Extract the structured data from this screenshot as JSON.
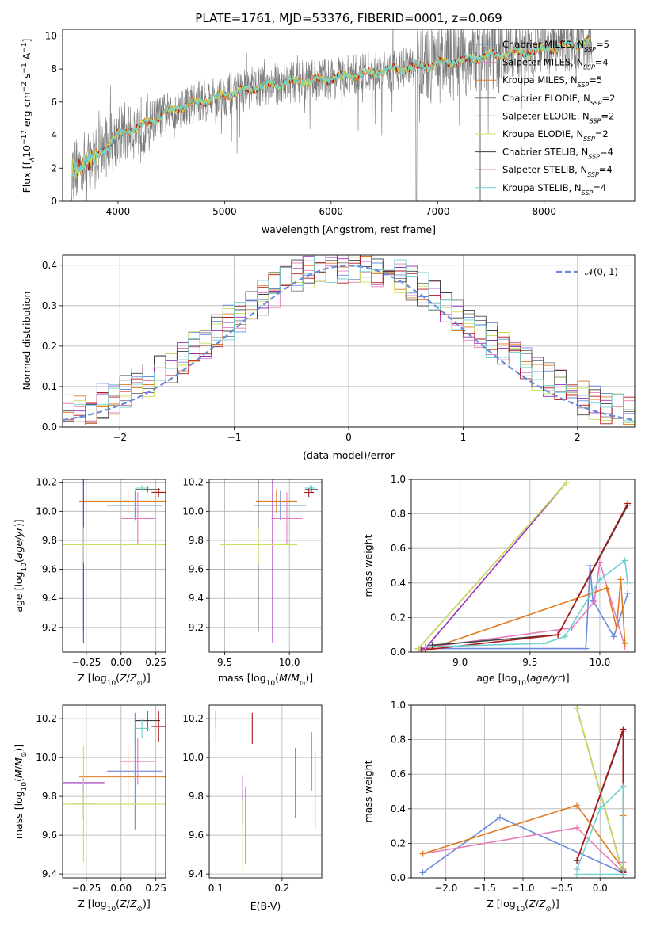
{
  "title": "PLATE=1761, MJD=53376, FIBERID=0001, z=0.069",
  "colors": {
    "chabrier_miles": "#6a8bdc",
    "salpeter_miles": "#e37ebb",
    "kroupa_miles": "#e07b20",
    "chabrier_elodie": "#7a7a7a",
    "salpeter_elodie": "#9b30b8",
    "kroupa_elodie": "#c8e05a",
    "chabrier_stelib": "#404040",
    "salpeter_stelib": "#b01717",
    "kroupa_stelib": "#70d0d0",
    "normal": "#6a8bdc",
    "grid": "#b0b0b0"
  },
  "chart_data": [
    {
      "type": "line",
      "name": "spectrum",
      "xlabel": "wavelength [Angstrom, rest frame]",
      "ylabel": "Flux [f_λ10^-17 erg cm^-2 s^-1 A^-1]",
      "ylabel_parts": [
        "Flux [f",
        "λ",
        "10",
        "−17",
        " erg cm",
        "−2",
        " s",
        "−1",
        " A",
        "−1",
        "]"
      ],
      "xlim": [
        3480,
        8850
      ],
      "ylim": [
        0,
        10.4
      ],
      "xticks": [
        "4000",
        "5000",
        "6000",
        "7000",
        "8000"
      ],
      "yticks": [
        "0",
        "2",
        "4",
        "6",
        "8",
        "10"
      ],
      "legend_position": "upper right",
      "legend": [
        {
          "key": "chabrier_miles",
          "text": "Chabrier MILES, N",
          "sub": "SSP",
          "tail": "=5"
        },
        {
          "key": "salpeter_miles",
          "text": "Salpeter MILES, N",
          "sub": "SSP",
          "tail": "=4"
        },
        {
          "key": "kroupa_miles",
          "text": "Kroupa MILES, N",
          "sub": "SSP",
          "tail": "=5"
        },
        {
          "key": "chabrier_elodie",
          "text": "Chabrier ELODIE, N",
          "sub": "SSP",
          "tail": "=2"
        },
        {
          "key": "salpeter_elodie",
          "text": "Salpeter ELODIE, N",
          "sub": "SSP",
          "tail": "=2"
        },
        {
          "key": "kroupa_elodie",
          "text": "Kroupa ELODIE, N",
          "sub": "SSP",
          "tail": "=2"
        },
        {
          "key": "chabrier_stelib",
          "text": "Chabrier STELIB, N",
          "sub": "SSP",
          "tail": "=4"
        },
        {
          "key": "salpeter_stelib",
          "text": "Salpeter STELIB, N",
          "sub": "SSP",
          "tail": "=4"
        },
        {
          "key": "kroupa_stelib",
          "text": "Kroupa STELIB, N",
          "sub": "SSP",
          "tail": "=4"
        }
      ],
      "continuum": {
        "x": [
          3560,
          3700,
          3800,
          3900,
          4000,
          4100,
          4200,
          4300,
          4500,
          4700,
          5000,
          5300,
          5600,
          6000,
          6300,
          6600,
          6900,
          7200,
          7500,
          7800,
          8100,
          8400,
          8450
        ],
        "y": [
          1.8,
          2.4,
          2.7,
          3.4,
          4.0,
          4.3,
          4.5,
          4.8,
          5.5,
          5.9,
          6.4,
          6.9,
          7.2,
          7.4,
          7.7,
          8.0,
          8.2,
          8.5,
          8.8,
          9.0,
          9.3,
          9.6,
          9.7
        ]
      }
    },
    {
      "type": "bar",
      "name": "residual_histogram",
      "xlabel": "(data-model)/error",
      "ylabel": "Normed distribution",
      "xlim": [
        -2.5,
        2.5
      ],
      "ylim": [
        0,
        0.425
      ],
      "xticks": [
        "−2",
        "−1",
        "0",
        "1",
        "2"
      ],
      "yticks": [
        "0.0",
        "0.1",
        "0.2",
        "0.3",
        "0.4"
      ],
      "legend_label": "𝒩(0, 1)",
      "legend_position": "upper right",
      "grid": true,
      "bin_width": 0.1
    },
    {
      "type": "scatter",
      "name": "age_vs_Z",
      "xlabel": "Z [log10(Z/Z⊙)]",
      "ylabel": "age [log10(age/yr)]",
      "xlim": [
        -0.42,
        0.32
      ],
      "ylim": [
        9.03,
        10.22
      ],
      "xticks": [
        "−0.25",
        "0.00",
        "0.25"
      ],
      "xtick_values": [
        -0.25,
        0,
        0.25
      ],
      "yticks": [
        "9.2",
        "9.4",
        "9.6",
        "9.8",
        "10.0",
        "10.2"
      ],
      "ytick_values": [
        9.2,
        9.4,
        9.6,
        9.8,
        10.0,
        10.2
      ],
      "grid": true,
      "points": [
        {
          "key": "chabrier_miles",
          "x": 0.1,
          "y": 10.04,
          "xerr": 0.2,
          "yerr": 0.1
        },
        {
          "key": "salpeter_miles",
          "x": 0.12,
          "y": 9.95,
          "xerr": 0.12,
          "yerr": 0.18
        },
        {
          "key": "kroupa_miles",
          "x": 0.05,
          "y": 10.07,
          "xerr": 0.35,
          "yerr": 0.08
        },
        {
          "key": "chabrier_elodie",
          "x": -0.27,
          "y": 9.77,
          "xerr": 0.1,
          "yerr": 0.6
        },
        {
          "key": "salpeter_elodie",
          "x": -0.27,
          "y": 9.77,
          "xerr": 0.15,
          "yerr": 0.68
        },
        {
          "key": "kroupa_elodie",
          "x": -0.27,
          "y": 9.77,
          "xerr": 0.16,
          "yerr": 0.12
        },
        {
          "key": "chabrier_stelib",
          "x": 0.19,
          "y": 10.15,
          "xerr": 0.09,
          "yerr": 0.02
        },
        {
          "key": "salpeter_stelib",
          "x": 0.27,
          "y": 10.13,
          "xerr": 0.05,
          "yerr": 0.03
        },
        {
          "key": "kroupa_stelib",
          "x": 0.15,
          "y": 10.16,
          "xerr": 0.05,
          "yerr": 0.02
        },
        {
          "key": "kroupa_elodie",
          "x": -0.27,
          "y": 9.77,
          "xerr": 0.6,
          "yerr": 0.0
        }
      ]
    },
    {
      "type": "scatter",
      "name": "age_vs_mass",
      "xlabel": "mass [log10(M/M⊙)]",
      "ylabel": "",
      "xlim": [
        9.38,
        10.25
      ],
      "ylim": [
        9.03,
        10.22
      ],
      "xticks": [
        "9.5",
        "10.0"
      ],
      "xtick_values": [
        9.5,
        10.0
      ],
      "yticks": [
        "9.2",
        "9.4",
        "9.6",
        "9.8",
        "10.0",
        "10.2"
      ],
      "ytick_values": [
        9.2,
        9.4,
        9.6,
        9.8,
        10.0,
        10.2
      ],
      "grid": true,
      "points": [
        {
          "key": "chabrier_miles",
          "x": 9.93,
          "y": 10.04,
          "xerr": 0.2,
          "yerr": 0.1
        },
        {
          "key": "salpeter_miles",
          "x": 9.98,
          "y": 9.95,
          "xerr": 0.12,
          "yerr": 0.18
        },
        {
          "key": "kroupa_miles",
          "x": 9.9,
          "y": 10.07,
          "xerr": 0.16,
          "yerr": 0.08
        },
        {
          "key": "chabrier_elodie",
          "x": 9.76,
          "y": 9.77,
          "xerr": 0.08,
          "yerr": 0.6
        },
        {
          "key": "salpeter_elodie",
          "x": 9.87,
          "y": 9.77,
          "xerr": 0.04,
          "yerr": 0.68
        },
        {
          "key": "kroupa_elodie",
          "x": 9.76,
          "y": 9.77,
          "xerr": 0.3,
          "yerr": 0.12
        },
        {
          "key": "chabrier_stelib",
          "x": 10.17,
          "y": 10.15,
          "xerr": 0.05,
          "yerr": 0.02
        },
        {
          "key": "salpeter_stelib",
          "x": 10.15,
          "y": 10.13,
          "xerr": 0.04,
          "yerr": 0.03
        },
        {
          "key": "kroupa_stelib",
          "x": 10.16,
          "y": 10.16,
          "xerr": 0.04,
          "yerr": 0.02
        }
      ]
    },
    {
      "type": "line",
      "name": "mass_weight_vs_age",
      "xlabel": "age [log10(age/yr)]",
      "ylabel": "mass weight",
      "xlim": [
        8.65,
        10.25
      ],
      "ylim": [
        0,
        1.0
      ],
      "xticks": [
        "9.0",
        "9.5",
        "10.0"
      ],
      "xtick_values": [
        9.0,
        9.5,
        10.0
      ],
      "yticks": [
        "0.0",
        "0.2",
        "0.4",
        "0.6",
        "0.8",
        "1.0"
      ],
      "ytick_values": [
        0,
        0.2,
        0.4,
        0.6,
        0.8,
        1.0
      ],
      "grid": true,
      "series": [
        {
          "key": "chabrier_miles",
          "x": [
            8.7,
            9.9,
            9.93,
            9.95,
            10.1,
            10.2
          ],
          "y": [
            0.02,
            0.02,
            0.5,
            0.3,
            0.09,
            0.34
          ]
        },
        {
          "key": "salpeter_miles",
          "x": [
            8.7,
            9.8,
            9.96,
            10.0,
            10.18
          ],
          "y": [
            0.02,
            0.14,
            0.29,
            0.52,
            0.03
          ]
        },
        {
          "key": "kroupa_miles",
          "x": [
            8.75,
            10.05,
            10.12,
            10.15,
            10.18
          ],
          "y": [
            0.01,
            0.37,
            0.14,
            0.42,
            0.05
          ]
        },
        {
          "key": "chabrier_elodie",
          "x": [
            8.7,
            9.76
          ],
          "y": [
            0.02,
            0.98
          ]
        },
        {
          "key": "salpeter_elodie",
          "x": [
            8.75,
            9.76
          ],
          "y": [
            0.02,
            0.98
          ]
        },
        {
          "key": "kroupa_elodie",
          "x": [
            8.7,
            9.76
          ],
          "y": [
            0.02,
            0.98
          ]
        },
        {
          "key": "chabrier_stelib",
          "x": [
            8.8,
            9.7,
            10.2
          ],
          "y": [
            0.04,
            0.1,
            0.85
          ]
        },
        {
          "key": "salpeter_stelib",
          "x": [
            8.72,
            9.7,
            10.2
          ],
          "y": [
            0.01,
            0.1,
            0.86
          ]
        },
        {
          "key": "kroupa_stelib",
          "x": [
            8.75,
            9.6,
            9.75,
            10.0,
            10.18,
            10.2
          ],
          "y": [
            0.03,
            0.05,
            0.09,
            0.42,
            0.53,
            0.4
          ]
        }
      ]
    },
    {
      "type": "scatter",
      "name": "mass_vs_Z",
      "xlabel": "Z [log10(Z/Z⊙)]",
      "ylabel": "mass [log10(M/M⊙)]",
      "xlim": [
        -0.42,
        0.32
      ],
      "ylim": [
        9.38,
        10.27
      ],
      "xticks": [
        "−0.25",
        "0.00",
        "0.25"
      ],
      "xtick_values": [
        -0.25,
        0,
        0.25
      ],
      "yticks": [
        "9.4",
        "9.6",
        "9.8",
        "10.0",
        "10.2"
      ],
      "ytick_values": [
        9.4,
        9.6,
        9.8,
        10.0,
        10.2
      ],
      "grid": true,
      "points": [
        {
          "key": "chabrier_miles",
          "x": 0.1,
          "y": 9.93,
          "xerr": 0.2,
          "yerr": 0.3
        },
        {
          "key": "salpeter_miles",
          "x": 0.12,
          "y": 9.98,
          "xerr": 0.12,
          "yerr": 0.12
        },
        {
          "key": "kroupa_miles",
          "x": 0.05,
          "y": 9.9,
          "xerr": 0.35,
          "yerr": 0.16
        },
        {
          "key": "chabrier_elodie",
          "x": -0.27,
          "y": 9.76,
          "xerr": 0.1,
          "yerr": 0.08
        },
        {
          "key": "salpeter_elodie",
          "x": -0.27,
          "y": 9.87,
          "xerr": 0.15,
          "yerr": 0.04
        },
        {
          "key": "kroupa_elodie",
          "x": -0.27,
          "y": 9.76,
          "xerr": 0.6,
          "yerr": 0.3
        },
        {
          "key": "chabrier_stelib",
          "x": 0.19,
          "y": 10.19,
          "xerr": 0.09,
          "yerr": 0.05
        },
        {
          "key": "salpeter_stelib",
          "x": 0.27,
          "y": 10.16,
          "xerr": 0.05,
          "yerr": 0.08
        },
        {
          "key": "kroupa_stelib",
          "x": 0.15,
          "y": 10.15,
          "xerr": 0.05,
          "yerr": 0.05
        }
      ]
    },
    {
      "type": "scatter",
      "name": "mass_vs_EBV",
      "xlabel": "E(B-V)",
      "ylabel": "",
      "xlim": [
        0.09,
        0.26
      ],
      "ylim": [
        9.38,
        10.27
      ],
      "xticks": [
        "0.1",
        "0.2"
      ],
      "xtick_values": [
        0.1,
        0.2
      ],
      "yticks": [
        "9.4",
        "9.6",
        "9.8",
        "10.0",
        "10.2"
      ],
      "ytick_values": [
        9.4,
        9.6,
        9.8,
        10.0,
        10.2
      ],
      "grid": true,
      "points": [
        {
          "key": "chabrier_miles",
          "x": 0.25,
          "y": 9.83,
          "xerr": 0,
          "yerr": 0.2
        },
        {
          "key": "salpeter_miles",
          "x": 0.245,
          "y": 9.98,
          "xerr": 0,
          "yerr": 0.15
        },
        {
          "key": "kroupa_miles",
          "x": 0.22,
          "y": 9.87,
          "xerr": 0,
          "yerr": 0.18
        },
        {
          "key": "chabrier_elodie",
          "x": 0.145,
          "y": 9.65,
          "xerr": 0,
          "yerr": 0.2
        },
        {
          "key": "salpeter_elodie",
          "x": 0.14,
          "y": 9.78,
          "xerr": 0,
          "yerr": 0.13
        },
        {
          "key": "kroupa_elodie",
          "x": 0.14,
          "y": 9.6,
          "xerr": 0,
          "yerr": 0.18
        },
        {
          "key": "chabrier_stelib",
          "x": 0.1,
          "y": 10.2,
          "xerr": 0,
          "yerr": 0.04
        },
        {
          "key": "salpeter_stelib",
          "x": 0.155,
          "y": 10.15,
          "xerr": 0,
          "yerr": 0.08
        },
        {
          "key": "kroupa_stelib",
          "x": 0.1,
          "y": 10.15,
          "xerr": 0,
          "yerr": 0.06
        }
      ]
    },
    {
      "type": "line",
      "name": "mass_weight_vs_Z",
      "xlabel": "Z [log10(Z/Z⊙)]",
      "ylabel": "mass weight",
      "xlim": [
        -2.45,
        0.45
      ],
      "ylim": [
        0,
        1.0
      ],
      "xticks": [
        "−2.0",
        "−1.5",
        "−1.0",
        "−0.5",
        "0.0"
      ],
      "xtick_values": [
        -2.0,
        -1.5,
        -1.0,
        -0.5,
        0.0
      ],
      "yticks": [
        "0.0",
        "0.2",
        "0.4",
        "0.6",
        "0.8",
        "1.0"
      ],
      "ytick_values": [
        0,
        0.2,
        0.4,
        0.6,
        0.8,
        1.0
      ],
      "grid": true,
      "series": [
        {
          "key": "chabrier_miles",
          "x": [
            -2.3,
            -1.3,
            0.3
          ],
          "y": [
            0.03,
            0.35,
            0.03
          ]
        },
        {
          "key": "salpeter_miles",
          "x": [
            -2.3,
            -0.3,
            0.3,
            0.3
          ],
          "y": [
            0.14,
            0.29,
            0.03,
            0.09
          ]
        },
        {
          "key": "kroupa_miles",
          "x": [
            -2.3,
            -0.3,
            0.3,
            0.3
          ],
          "y": [
            0.14,
            0.42,
            0.05,
            0.36
          ]
        },
        {
          "key": "chabrier_elodie",
          "x": [
            -0.3,
            0.3
          ],
          "y": [
            0.98,
            0.02
          ]
        },
        {
          "key": "salpeter_elodie",
          "x": [
            -0.3,
            0.3
          ],
          "y": [
            0.98,
            0.02
          ]
        },
        {
          "key": "kroupa_elodie",
          "x": [
            -0.3,
            0.3
          ],
          "y": [
            0.98,
            0.02
          ]
        },
        {
          "key": "chabrier_stelib",
          "x": [
            -0.3,
            0.3,
            0.3
          ],
          "y": [
            0.1,
            0.85,
            0.04
          ]
        },
        {
          "key": "salpeter_stelib",
          "x": [
            -0.3,
            0.3,
            0.3
          ],
          "y": [
            0.1,
            0.86,
            0.03
          ]
        },
        {
          "key": "kroupa_stelib",
          "x": [
            -0.3,
            0.0,
            0.3,
            0.3,
            -0.3
          ],
          "y": [
            0.05,
            0.4,
            0.53,
            0.02,
            0.02
          ]
        }
      ]
    }
  ]
}
